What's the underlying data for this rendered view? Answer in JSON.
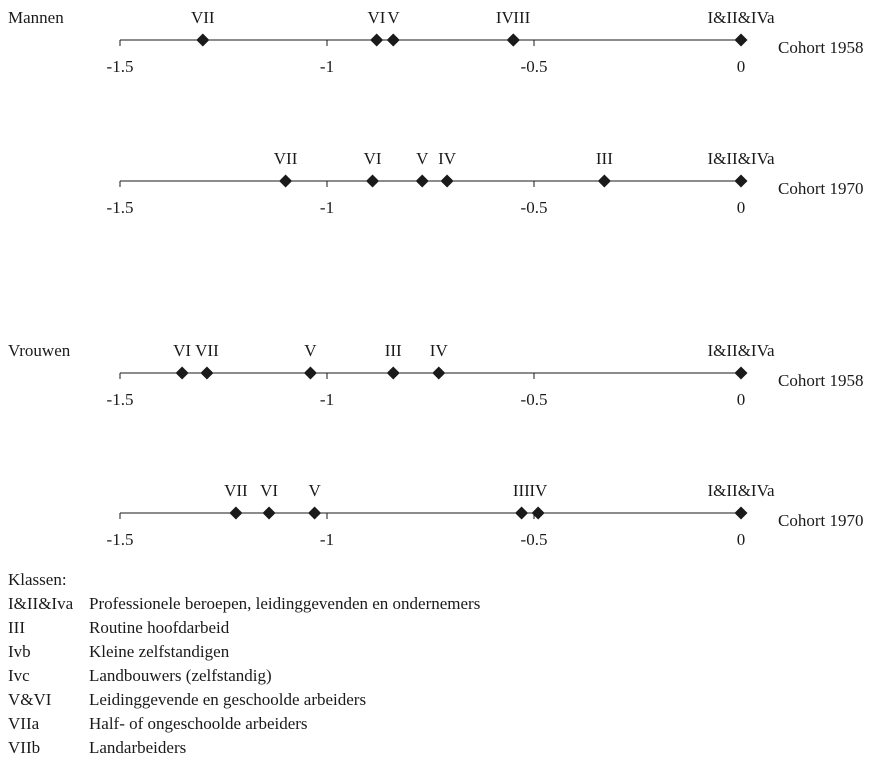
{
  "chart_data": [
    {
      "type": "scatter",
      "group": "Mannen",
      "cohort_label": "Cohort 1958",
      "xlim": [
        -1.5,
        0
      ],
      "ticks": [
        -1.5,
        -1,
        -0.5,
        0
      ],
      "tick_labels": [
        "-1.5",
        "-1",
        "-0.5",
        "0"
      ],
      "points": [
        {
          "label": "VII",
          "value": -1.3
        },
        {
          "label": "VI",
          "value": -0.88
        },
        {
          "label": "V",
          "value": -0.84
        },
        {
          "label": "IV",
          "value": -0.55
        },
        {
          "label": "III",
          "value": -0.55
        },
        {
          "label": "I&II&IVa",
          "value": 0
        }
      ]
    },
    {
      "type": "scatter",
      "group": "",
      "cohort_label": "Cohort 1970",
      "xlim": [
        -1.5,
        0
      ],
      "ticks": [
        -1.5,
        -1,
        -0.5,
        0
      ],
      "tick_labels": [
        "-1.5",
        "-1",
        "-0.5",
        "0"
      ],
      "points": [
        {
          "label": "VII",
          "value": -1.1
        },
        {
          "label": "VI",
          "value": -0.89
        },
        {
          "label": "V",
          "value": -0.77
        },
        {
          "label": "IV",
          "value": -0.71
        },
        {
          "label": "III",
          "value": -0.33
        },
        {
          "label": "I&II&IVa",
          "value": 0
        }
      ]
    },
    {
      "type": "scatter",
      "group": "Vrouwen",
      "cohort_label": "Cohort 1958",
      "xlim": [
        -1.5,
        0
      ],
      "ticks": [
        -1.5,
        -1,
        -0.5,
        0
      ],
      "tick_labels": [
        "-1.5",
        "-1",
        "-0.5",
        "0"
      ],
      "points": [
        {
          "label": "VI",
          "value": -1.35
        },
        {
          "label": "VII",
          "value": -1.29
        },
        {
          "label": "V",
          "value": -1.04
        },
        {
          "label": "III",
          "value": -0.84
        },
        {
          "label": "IV",
          "value": -0.73
        },
        {
          "label": "I&II&IVa",
          "value": 0
        }
      ]
    },
    {
      "type": "scatter",
      "group": "",
      "cohort_label": "Cohort 1970",
      "xlim": [
        -1.5,
        0
      ],
      "ticks": [
        -1.5,
        -1,
        -0.5,
        0
      ],
      "tick_labels": [
        "-1.5",
        "-1",
        "-0.5",
        "0"
      ],
      "points": [
        {
          "label": "VII",
          "value": -1.22
        },
        {
          "label": "VI",
          "value": -1.14
        },
        {
          "label": "V",
          "value": -1.03
        },
        {
          "label": "III",
          "value": -0.53
        },
        {
          "label": "IV",
          "value": -0.49
        },
        {
          "label": "I&II&IVa",
          "value": 0
        }
      ]
    }
  ],
  "legend": {
    "title": "Klassen:",
    "items": [
      {
        "code": "I&II&Iva",
        "desc": "Professionele beroepen, leidinggevenden en ondernemers"
      },
      {
        "code": "III",
        "desc": "Routine hoofdarbeid"
      },
      {
        "code": "Ivb",
        "desc": "Kleine zelfstandigen"
      },
      {
        "code": "Ivc",
        "desc": "Landbouwers (zelfstandig)"
      },
      {
        "code": "V&VI",
        "desc": "Leidinggevende en geschoolde arbeiders"
      },
      {
        "code": "VIIa",
        "desc": "Half- of ongeschoolde arbeiders"
      },
      {
        "code": "VIIb",
        "desc": "Landarbeiders"
      }
    ]
  },
  "colors": {
    "line": "#1a1a1a",
    "marker": "#1a1a1a"
  }
}
